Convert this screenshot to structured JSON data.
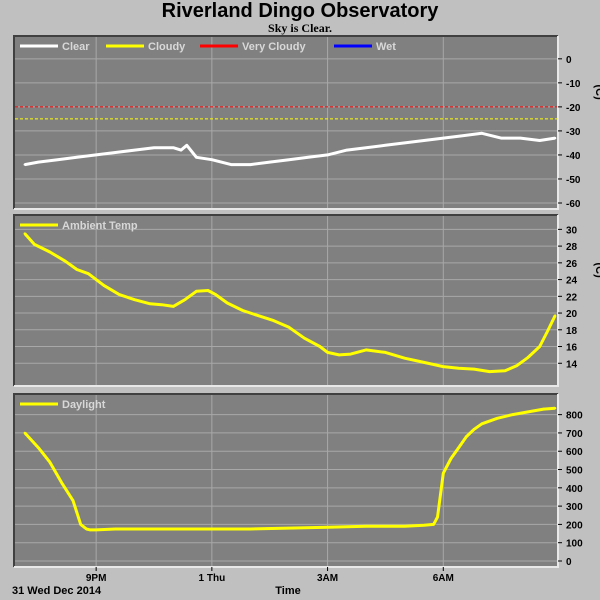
{
  "page": {
    "title": "Riverland Dingo Observatory",
    "subtitle": "Sky is Clear.",
    "date_label": "31 Wed Dec 2014",
    "xlabel": "Time"
  },
  "colors": {
    "plot_bg": "#808080",
    "frame_bg": "#c0c0c0",
    "grid": "#a8a8a8"
  },
  "chart_data": [
    {
      "type": "line",
      "ylim": [
        -60,
        7
      ],
      "yticks": [
        0,
        -10,
        -20,
        -30,
        -40,
        -50,
        -60
      ],
      "unit": "(C)",
      "legend": [
        {
          "name": "Clear",
          "color": "#ffffff"
        },
        {
          "name": "Cloudy",
          "color": "#ffff00"
        },
        {
          "name": "Very Cloudy",
          "color": "#ff0000"
        },
        {
          "name": "Wet",
          "color": "#0000ff"
        }
      ],
      "thresholds": [
        {
          "name": "Very Cloudy",
          "value": -20,
          "color": "#ff0000"
        },
        {
          "name": "Cloudy",
          "value": -25,
          "color": "#ffff00"
        }
      ],
      "series": [
        {
          "name": "Clear",
          "color": "#ffffff",
          "x": [
            19.15,
            19.5,
            20.0,
            20.5,
            21.0,
            21.5,
            22.0,
            22.5,
            23.0,
            23.2,
            23.35,
            23.6,
            24.0,
            24.5,
            25.0,
            25.5,
            26.0,
            26.5,
            27.0,
            27.5,
            28.0,
            28.5,
            29.0,
            29.5,
            30.0,
            30.5,
            31.0,
            31.5,
            32.0,
            32.5,
            32.9
          ],
          "y": [
            -44,
            -43,
            -42,
            -41,
            -40,
            -39,
            -38,
            -37,
            -37,
            -38,
            -36,
            -41,
            -42,
            -44,
            -44,
            -43,
            -42,
            -41,
            -40,
            -38,
            -37,
            -36,
            -35,
            -34,
            -33,
            -32,
            -31,
            -33,
            -33,
            -34,
            -33
          ]
        }
      ]
    },
    {
      "type": "line",
      "ylim": [
        12,
        31
      ],
      "yticks": [
        30,
        28,
        26,
        24,
        22,
        20,
        18,
        16,
        14
      ],
      "unit": "(C)",
      "legend": [
        {
          "name": "Ambient Temp",
          "color": "#ffff00"
        }
      ],
      "series": [
        {
          "name": "Ambient Temp",
          "color": "#ffff00",
          "x": [
            19.15,
            19.4,
            19.8,
            20.2,
            20.5,
            20.8,
            21.2,
            21.6,
            22.0,
            22.4,
            22.7,
            23.0,
            23.3,
            23.6,
            23.9,
            24.1,
            24.4,
            24.8,
            25.2,
            25.6,
            26.0,
            26.4,
            26.8,
            27.0,
            27.3,
            27.6,
            28.0,
            28.5,
            29.0,
            29.5,
            30.0,
            30.4,
            30.8,
            31.2,
            31.6,
            31.9,
            32.2,
            32.5,
            32.7,
            32.9
          ],
          "y": [
            29.5,
            28.2,
            27.3,
            26.2,
            25.2,
            24.7,
            23.3,
            22.2,
            21.6,
            21.1,
            21.0,
            20.8,
            21.6,
            22.6,
            22.7,
            22.2,
            21.2,
            20.3,
            19.7,
            19.1,
            18.3,
            17.0,
            16.0,
            15.3,
            15.0,
            15.1,
            15.6,
            15.3,
            14.6,
            14.1,
            13.6,
            13.4,
            13.3,
            13.0,
            13.1,
            13.7,
            14.7,
            16.0,
            17.8,
            19.7
          ]
        }
      ]
    },
    {
      "type": "line",
      "ylim": [
        0,
        880
      ],
      "yticks": [
        800,
        700,
        600,
        500,
        400,
        300,
        200,
        100,
        0
      ],
      "legend": [
        {
          "name": "Daylight",
          "color": "#ffff00"
        }
      ],
      "series": [
        {
          "name": "Daylight",
          "color": "#ffff00",
          "x": [
            19.15,
            19.5,
            19.8,
            20.1,
            20.4,
            20.6,
            20.75,
            20.85,
            21.0,
            21.5,
            22.0,
            23.0,
            24.0,
            25.0,
            26.0,
            27.0,
            28.0,
            29.0,
            29.5,
            29.75,
            29.85,
            30.0,
            30.2,
            30.4,
            30.6,
            30.8,
            31.0,
            31.4,
            31.8,
            32.2,
            32.6,
            32.9
          ],
          "y": [
            700,
            620,
            540,
            430,
            330,
            200,
            175,
            170,
            170,
            175,
            175,
            175,
            175,
            175,
            180,
            185,
            190,
            190,
            195,
            200,
            240,
            480,
            560,
            620,
            680,
            720,
            750,
            780,
            800,
            815,
            830,
            835
          ]
        }
      ]
    }
  ],
  "xaxis": {
    "range": [
      19.0,
      33.0
    ],
    "ticks": [
      {
        "value": 21,
        "label": "9PM"
      },
      {
        "value": 24,
        "label": "1 Thu"
      },
      {
        "value": 27,
        "label": "3AM"
      },
      {
        "value": 30,
        "label": "6AM"
      }
    ],
    "grid_values": [
      21,
      24,
      27,
      30
    ]
  }
}
